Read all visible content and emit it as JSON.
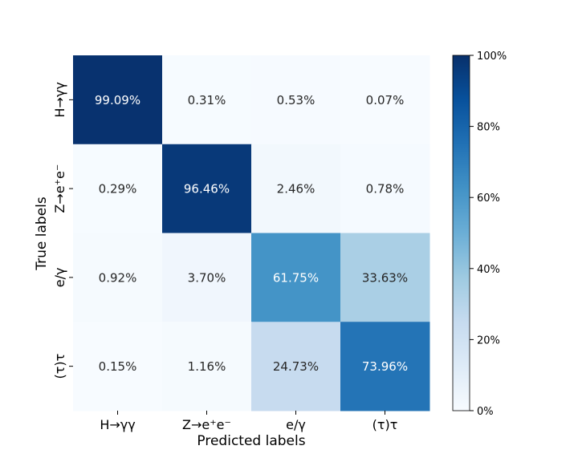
{
  "chart_data": {
    "type": "heatmap",
    "xlabel": "Predicted labels",
    "ylabel": "True labels",
    "x_categories": [
      "H→γγ",
      "Z→e⁺e⁻",
      "e/γ",
      "(τ)τ"
    ],
    "y_categories": [
      "H→γγ",
      "Z→e⁺e⁻",
      "e/γ",
      "(τ)τ"
    ],
    "values": [
      [
        99.09,
        0.31,
        0.53,
        0.07
      ],
      [
        0.29,
        96.46,
        2.46,
        0.78
      ],
      [
        0.92,
        3.7,
        61.75,
        33.63
      ],
      [
        0.15,
        1.16,
        24.73,
        73.96
      ]
    ],
    "cell_labels": [
      [
        "99.09%",
        "0.31%",
        "0.53%",
        "0.07%"
      ],
      [
        "0.29%",
        "96.46%",
        "2.46%",
        "0.78%"
      ],
      [
        "0.92%",
        "3.70%",
        "61.75%",
        "33.63%"
      ],
      [
        "0.15%",
        "1.16%",
        "24.73%",
        "73.96%"
      ]
    ],
    "colorbar": {
      "colormap": "Blues",
      "range": [
        0,
        100
      ],
      "ticks": [
        0,
        20,
        40,
        60,
        80,
        100
      ],
      "tick_labels": [
        "0%",
        "20%",
        "40%",
        "60%",
        "80%",
        "100%"
      ]
    },
    "colors": {
      "light_text": "#ffffff",
      "dark_text": "#262626",
      "axis": "#000000"
    }
  }
}
